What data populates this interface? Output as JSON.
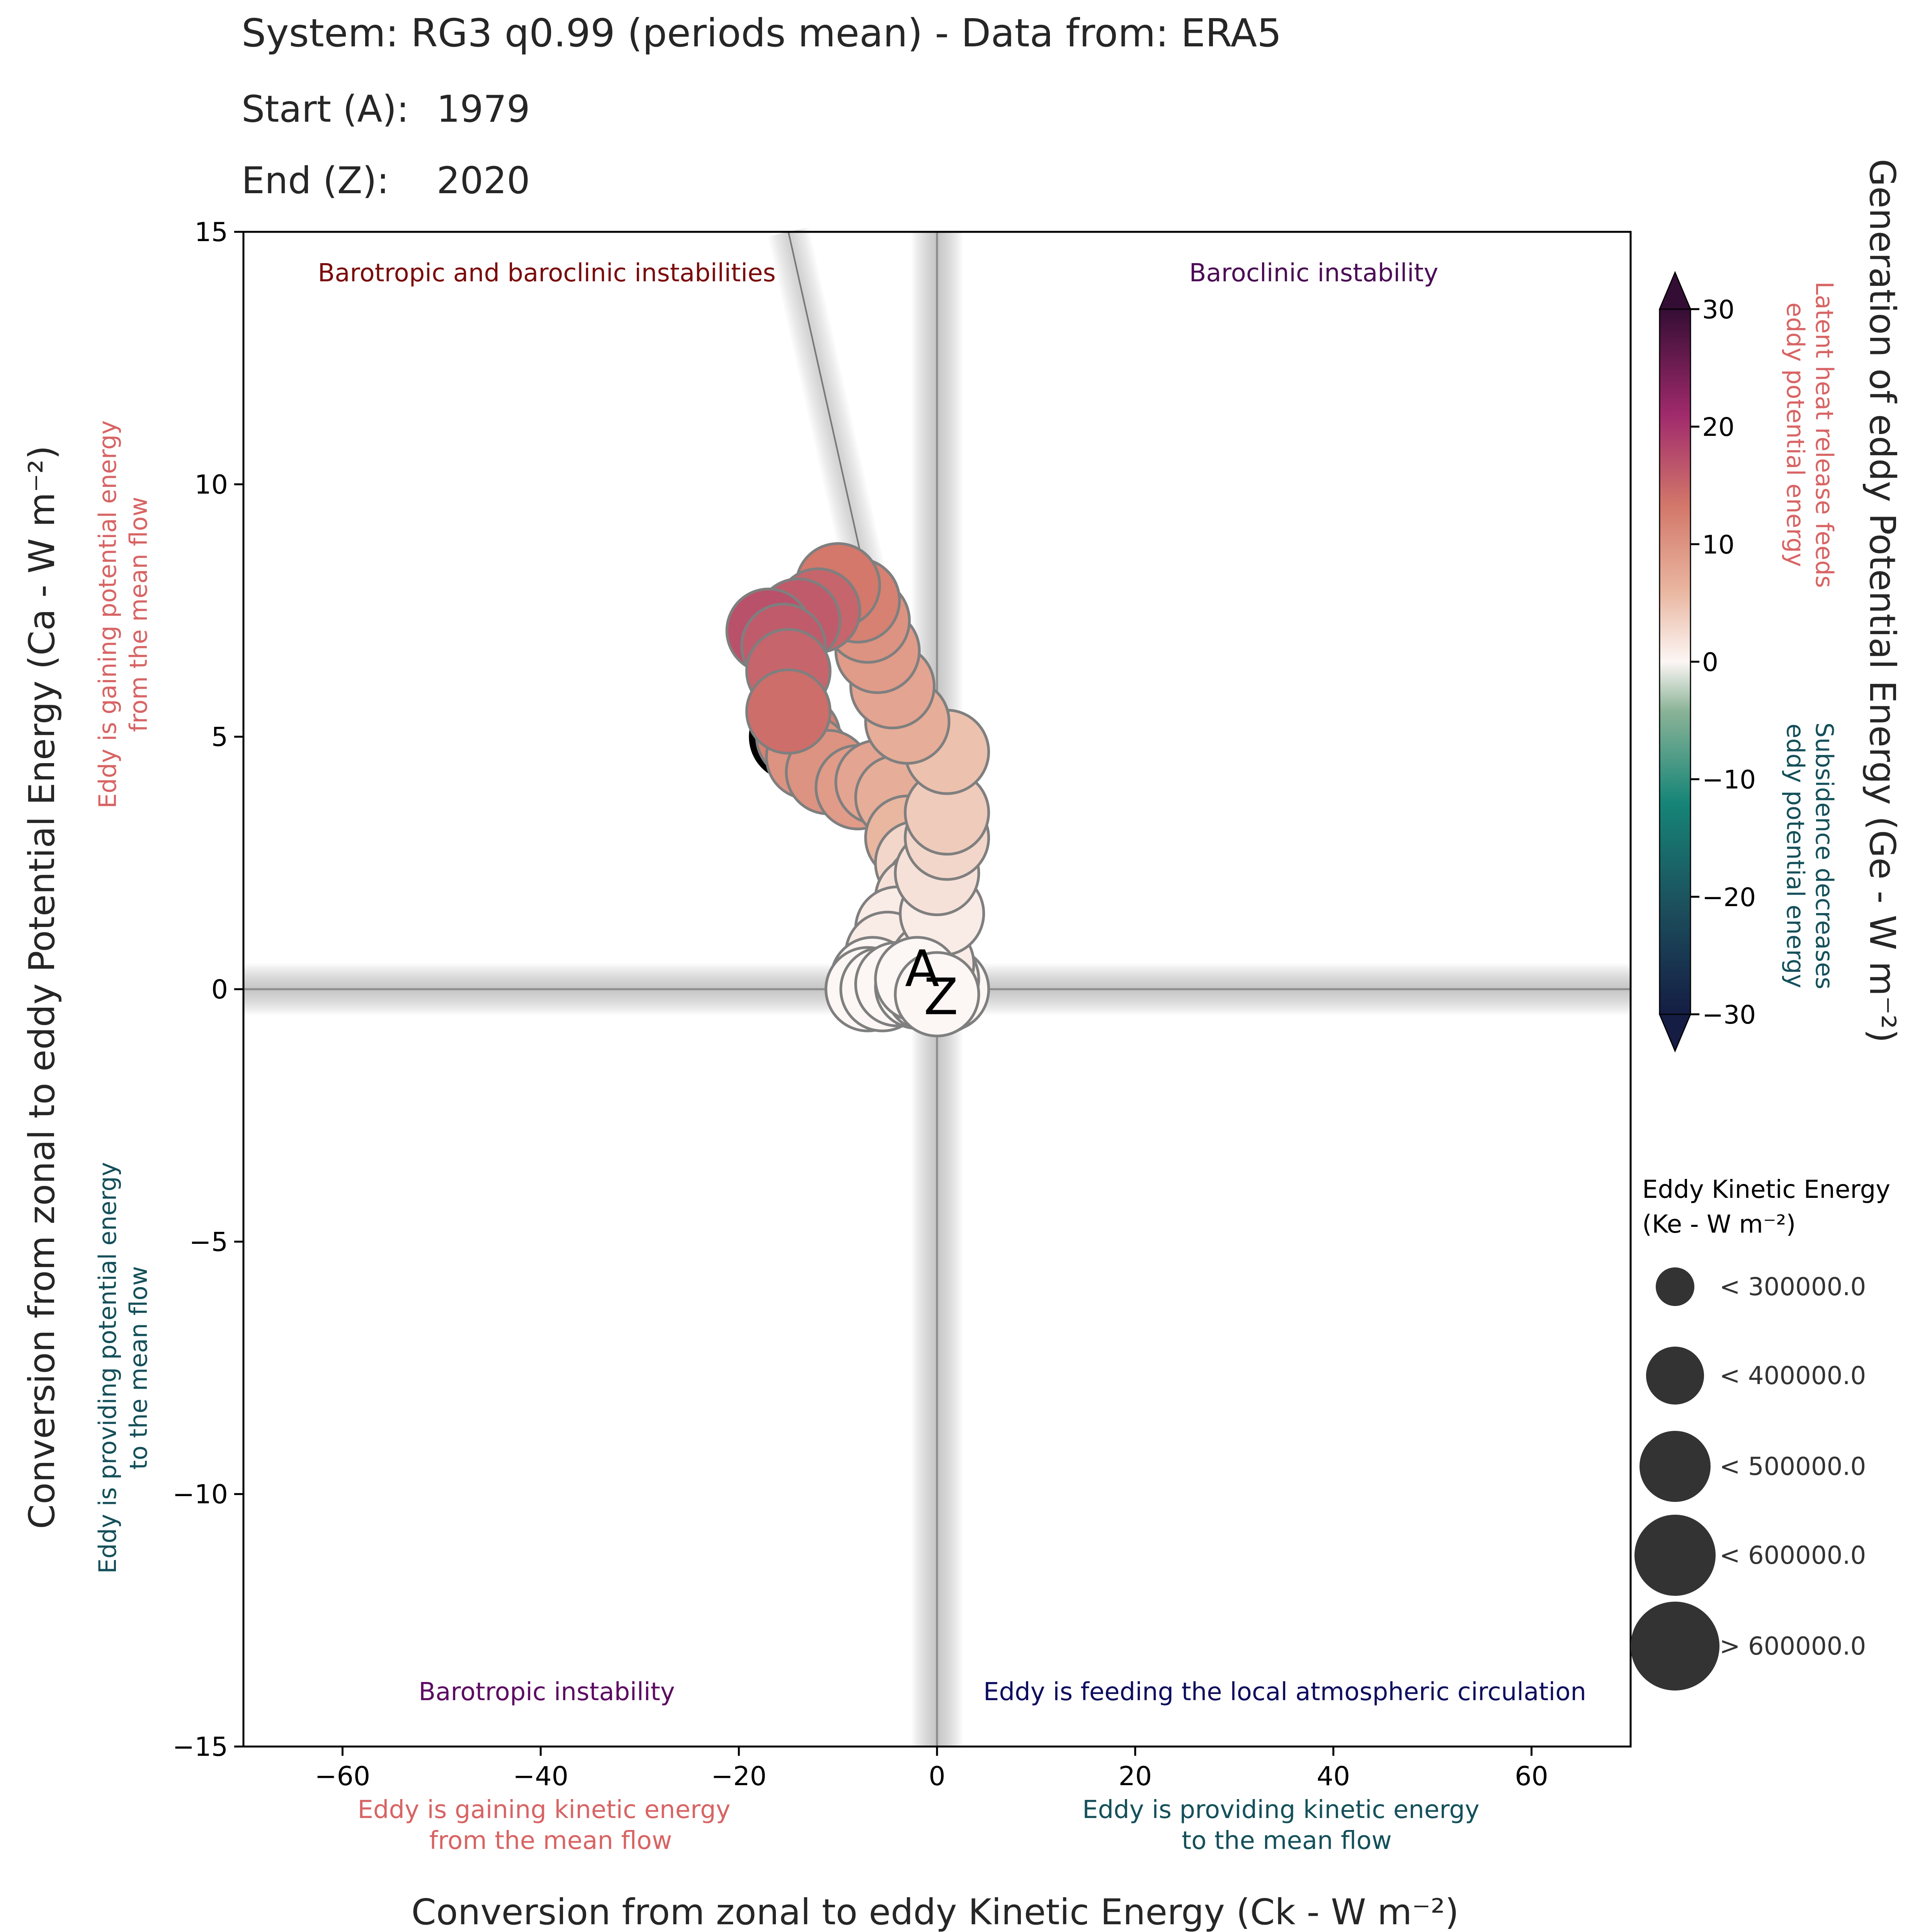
{
  "header": {
    "title": "System: RG3 q0.99 (periods mean) - Data from: ERA5",
    "start_label": "Start (A):",
    "start_value": "1979",
    "end_label": "End (Z):",
    "end_value": "2020"
  },
  "quadrants": {
    "top_left": "Barotropic and baroclinic instabilities",
    "top_right": "Baroclinic instability",
    "bottom_left": "Barotropic instability",
    "bottom_right": "Eddy is feeding the local atmospheric circulation"
  },
  "side_notes": {
    "y_positive": [
      "Eddy is gaining potential energy",
      "from the mean flow"
    ],
    "y_negative": [
      "Eddy is providing potential energy",
      "to the mean flow"
    ],
    "x_negative": [
      "Eddy is gaining kinetic energy",
      "from the mean flow"
    ],
    "x_positive": [
      "Eddy is providing kinetic energy",
      "to the mean flow"
    ],
    "cbar_positive": [
      "Latent heat release feeds",
      "eddy potential energy"
    ],
    "cbar_negative": [
      "Subsidence decreases",
      "eddy potential energy"
    ]
  },
  "markers": {
    "start": "A",
    "end": "Z"
  },
  "size_legend": {
    "title_line1": "Eddy Kinetic Energy",
    "title_line2": "(Ke - W m⁻²)",
    "entries": [
      "< 300000.0",
      "< 400000.0",
      "< 500000.0",
      "< 600000.0",
      "> 600000.0"
    ]
  },
  "colors": {
    "quad_top_left": "#7a0a0a",
    "quad_top_right": "#4b0c55",
    "quad_bottom_left": "#5c0a62",
    "quad_bottom_right": "#0d0d5e",
    "note_positive": "#d86464",
    "note_negative": "#14505a",
    "marker_edge": "#7f7f7f",
    "legend_fill": "#333333"
  },
  "chart_data": {
    "type": "scatter",
    "xlabel": "Conversion from zonal to eddy Kinetic Energy (Ck - W m⁻²)",
    "ylabel": "Conversion from zonal to eddy Potential Energy (Ca - W m⁻²)",
    "colorbar_label": "Generation of eddy Potential Energy (Ge - W m⁻²)",
    "xlim": [
      -70,
      70
    ],
    "ylim": [
      -15,
      15
    ],
    "xticks": [
      -60,
      -40,
      -20,
      0,
      20,
      40,
      60
    ],
    "yticks": [
      -15,
      -10,
      -5,
      0,
      5,
      10,
      15
    ],
    "color_range": [
      -30,
      30
    ],
    "colorbar_ticks": [
      -30,
      -20,
      -10,
      0,
      10,
      20,
      30
    ],
    "colormap": "cmocean curl",
    "size_metric": "Ke",
    "points": [
      {
        "x": -14.0,
        "y": 5.0,
        "ge": 12
      },
      {
        "x": -13.0,
        "y": 4.6,
        "ge": 10
      },
      {
        "x": -11.0,
        "y": 4.3,
        "ge": 10
      },
      {
        "x": -8.0,
        "y": 4.0,
        "ge": 9
      },
      {
        "x": -6.0,
        "y": 4.1,
        "ge": 8
      },
      {
        "x": -4.0,
        "y": 3.8,
        "ge": 7
      },
      {
        "x": -3.0,
        "y": 3.0,
        "ge": 6
      },
      {
        "x": -2.0,
        "y": 2.5,
        "ge": 3
      },
      {
        "x": -1.0,
        "y": 2.0,
        "ge": 2
      },
      {
        "x": -2.0,
        "y": 1.8,
        "ge": 2
      },
      {
        "x": -4.0,
        "y": 1.2,
        "ge": 1
      },
      {
        "x": -5.0,
        "y": 0.7,
        "ge": 1
      },
      {
        "x": -6.5,
        "y": 0.2,
        "ge": 0
      },
      {
        "x": -7.0,
        "y": 0.0,
        "ge": 0
      },
      {
        "x": -5.5,
        "y": 0.0,
        "ge": 0
      },
      {
        "x": -4.0,
        "y": 0.1,
        "ge": 0
      },
      {
        "x": -2.0,
        "y": 0.05,
        "ge": 0
      },
      {
        "x": -1.0,
        "y": 0.0,
        "ge": 0
      },
      {
        "x": 0.5,
        "y": -0.05,
        "ge": 0
      },
      {
        "x": 1.0,
        "y": 0.0,
        "ge": 0
      },
      {
        "x": 0.0,
        "y": 0.2,
        "ge": 1
      },
      {
        "x": -0.5,
        "y": 0.5,
        "ge": 1
      },
      {
        "x": 0.5,
        "y": 1.5,
        "ge": 1
      },
      {
        "x": 0.0,
        "y": 2.3,
        "ge": 2
      },
      {
        "x": 1.0,
        "y": 3.0,
        "ge": 3
      },
      {
        "x": 1.0,
        "y": 3.5,
        "ge": 4
      },
      {
        "x": 1.0,
        "y": 4.7,
        "ge": 5
      },
      {
        "x": -3.0,
        "y": 5.3,
        "ge": 7
      },
      {
        "x": -4.5,
        "y": 6.0,
        "ge": 8
      },
      {
        "x": -6.0,
        "y": 6.7,
        "ge": 9
      },
      {
        "x": -7.0,
        "y": 7.3,
        "ge": 10
      },
      {
        "x": -8.0,
        "y": 7.7,
        "ge": 12
      },
      {
        "x": -10.0,
        "y": 8.0,
        "ge": 13
      },
      {
        "x": -12.0,
        "y": 7.5,
        "ge": 15
      },
      {
        "x": -14.0,
        "y": 7.3,
        "ge": 16
      },
      {
        "x": -17.0,
        "y": 7.1,
        "ge": 17
      },
      {
        "x": -15.5,
        "y": 6.8,
        "ge": 16
      },
      {
        "x": -15.0,
        "y": 6.3,
        "ge": 15
      },
      {
        "x": -15.0,
        "y": 5.5,
        "ge": 14
      },
      {
        "x": -2.0,
        "y": 0.2,
        "ge": 0
      },
      {
        "x": 0.0,
        "y": -0.1,
        "ge": 0
      }
    ],
    "start_point": {
      "x": -14.5,
      "y": 5.0
    },
    "end_point": {
      "x": -2.0,
      "y": 0.2
    },
    "mean_lines": {
      "vertical_x": 0,
      "horizontal_y": 0
    },
    "trend_line": {
      "x1": -15,
      "y1": 15,
      "x2": -7,
      "y2": 8
    }
  }
}
